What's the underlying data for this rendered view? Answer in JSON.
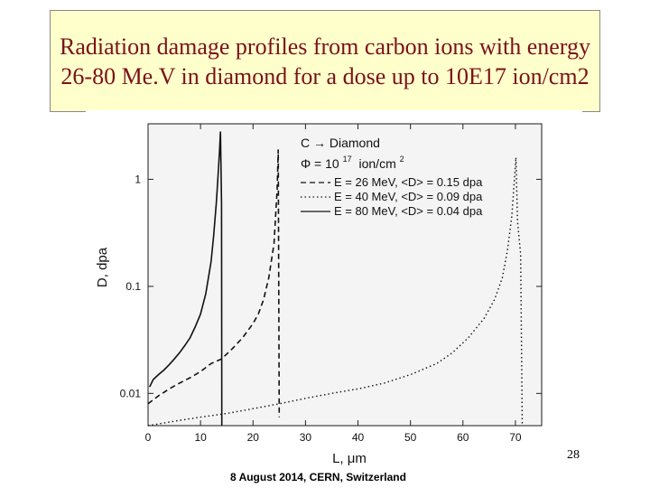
{
  "slide": {
    "title": "Radiation damage profiles from carbon ions with energy 26-80 Me.V in diamond for a dose up to 10E17 ion/cm2",
    "slide_number": "28",
    "footer": "8 August 2014, CERN, Switzerland"
  },
  "chart_data": {
    "type": "line",
    "xlabel": "L, μm",
    "ylabel": "D, dpa",
    "xlim": [
      0,
      75
    ],
    "ylim": [
      0.005,
      3.3
    ],
    "y_scale": "log",
    "x_ticks": [
      0,
      10,
      20,
      30,
      40,
      50,
      60,
      70
    ],
    "y_ticks": [
      {
        "value": 0.01,
        "label": "0.01"
      },
      {
        "value": 0.1,
        "label": "0.1"
      },
      {
        "value": 1,
        "label": "1"
      }
    ],
    "grid": false,
    "legend": {
      "position": "top-right",
      "header_reaction": "C → Diamond",
      "header_fluence": "Φ = 10",
      "header_fluence_exp": "17",
      "header_fluence_unit": "ion/cm",
      "header_fluence_unit_exp": "2"
    },
    "series": [
      {
        "name": "E = 26 MeV, <D> = 0.15 dpa",
        "style": "dashed",
        "x": [
          0,
          2,
          4,
          6,
          8,
          10,
          12,
          14,
          16,
          18,
          20,
          21,
          22,
          23,
          24,
          24.6,
          24.8,
          25.0
        ],
        "y": [
          0.008,
          0.0095,
          0.011,
          0.0125,
          0.014,
          0.016,
          0.019,
          0.021,
          0.026,
          0.033,
          0.045,
          0.055,
          0.075,
          0.12,
          0.25,
          0.8,
          1.9,
          0.006
        ]
      },
      {
        "name": "E = 40 MeV, <D> = 0.09 dpa",
        "style": "dotted",
        "x": [
          0,
          5,
          10,
          15,
          20,
          25,
          30,
          35,
          40,
          45,
          50,
          55,
          58,
          61,
          64,
          66,
          67.5,
          68.5,
          69.3,
          69.8,
          70.1,
          70.4,
          71.0,
          71.3
        ],
        "y": [
          0.005,
          0.0055,
          0.006,
          0.0065,
          0.0072,
          0.008,
          0.009,
          0.01,
          0.011,
          0.0125,
          0.015,
          0.019,
          0.024,
          0.033,
          0.05,
          0.075,
          0.12,
          0.22,
          0.45,
          1.0,
          1.6,
          0.4,
          0.2,
          0.005
        ]
      },
      {
        "name": "E = 80 MeV, <D> = 0.04 dpa",
        "style": "solid",
        "x": [
          0.3,
          1,
          2,
          3,
          4,
          5,
          6,
          7,
          8,
          9,
          10,
          11,
          12,
          12.5,
          13,
          13.3,
          13.6,
          13.8,
          14.0,
          14.05
        ],
        "y": [
          0.0115,
          0.0135,
          0.015,
          0.0165,
          0.0185,
          0.021,
          0.024,
          0.028,
          0.033,
          0.042,
          0.055,
          0.085,
          0.17,
          0.3,
          0.6,
          1.0,
          1.8,
          2.8,
          0.6,
          0.005
        ]
      }
    ]
  }
}
